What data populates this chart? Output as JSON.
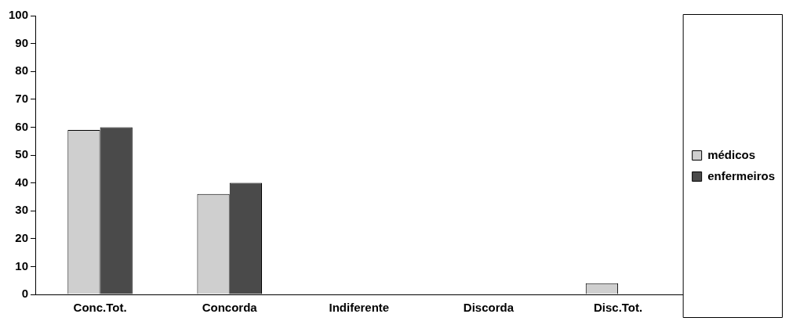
{
  "chart_data": {
    "type": "bar",
    "categories": [
      "Conc.Tot.",
      "Concorda",
      "Indiferente",
      "Discorda",
      "Disc.Tot."
    ],
    "series": [
      {
        "name": "médicos",
        "color": "#cfcfcf",
        "values": [
          59,
          36,
          0,
          0,
          4
        ]
      },
      {
        "name": "enfermeiros",
        "color": "#4a4a4a",
        "values": [
          60,
          40,
          0,
          0,
          0
        ]
      }
    ],
    "ylim": [
      0,
      100
    ],
    "yticks": [
      0,
      10,
      20,
      30,
      40,
      50,
      60,
      70,
      80,
      90,
      100
    ],
    "grid": false,
    "legend": "right"
  }
}
